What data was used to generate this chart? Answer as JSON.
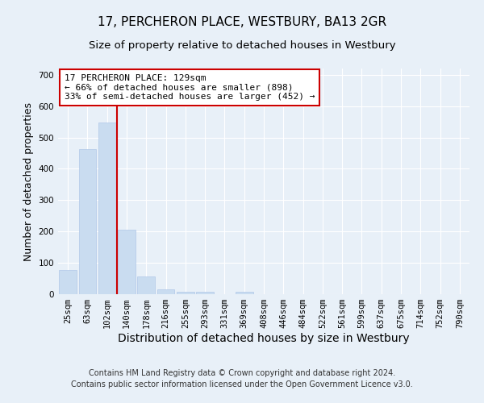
{
  "title": "17, PERCHERON PLACE, WESTBURY, BA13 2GR",
  "subtitle": "Size of property relative to detached houses in Westbury",
  "xlabel": "Distribution of detached houses by size in Westbury",
  "ylabel": "Number of detached properties",
  "footer_line1": "Contains HM Land Registry data © Crown copyright and database right 2024.",
  "footer_line2": "Contains public sector information licensed under the Open Government Licence v3.0.",
  "categories": [
    "25sqm",
    "63sqm",
    "102sqm",
    "140sqm",
    "178sqm",
    "216sqm",
    "255sqm",
    "293sqm",
    "331sqm",
    "369sqm",
    "408sqm",
    "446sqm",
    "484sqm",
    "522sqm",
    "561sqm",
    "599sqm",
    "637sqm",
    "675sqm",
    "714sqm",
    "752sqm",
    "790sqm"
  ],
  "values": [
    78,
    462,
    548,
    205,
    57,
    15,
    9,
    8,
    0,
    9,
    0,
    0,
    0,
    0,
    0,
    0,
    0,
    0,
    0,
    0,
    0
  ],
  "bar_color": "#c9dcf0",
  "bar_edgecolor": "#b0c8e8",
  "annotation_label": "17 PERCHERON PLACE: 129sqm",
  "annotation_line1": "← 66% of detached houses are smaller (898)",
  "annotation_line2": "33% of semi-detached houses are larger (452) →",
  "annotation_box_facecolor": "#ffffff",
  "annotation_box_edgecolor": "#cc0000",
  "vline_color": "#cc0000",
  "vline_x_index": 3,
  "ylim": [
    0,
    720
  ],
  "yticks": [
    0,
    100,
    200,
    300,
    400,
    500,
    600,
    700
  ],
  "bg_color": "#e8f0f8",
  "plot_bg_color": "#e8f0f8",
  "grid_color": "#ffffff",
  "title_fontsize": 11,
  "subtitle_fontsize": 9.5,
  "ylabel_fontsize": 9,
  "xlabel_fontsize": 10,
  "tick_fontsize": 7.5,
  "annotation_fontsize": 8,
  "footer_fontsize": 7
}
